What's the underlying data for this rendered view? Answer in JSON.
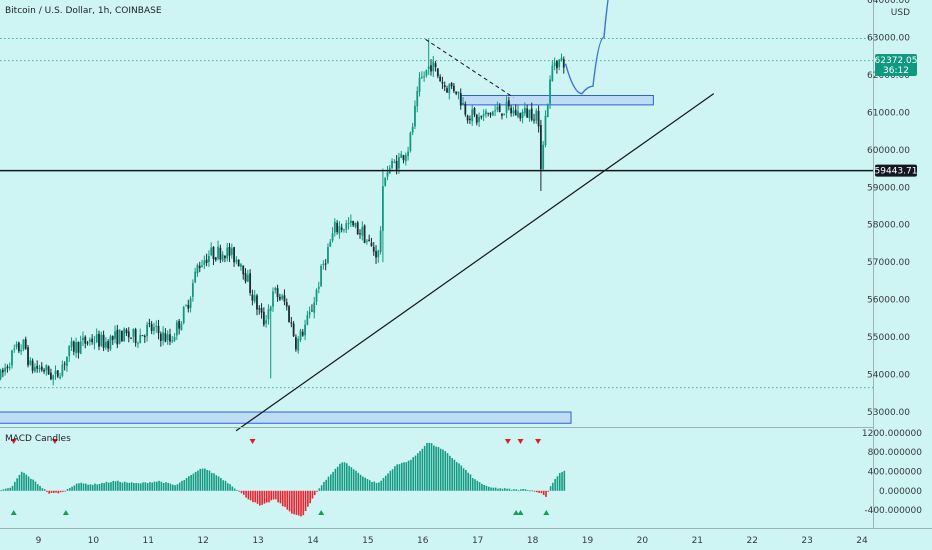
{
  "header": {
    "title": "Bitcoin / U.S. Dollar, 1h, COINBASE"
  },
  "indicator": {
    "title": "MACD Candles"
  },
  "price_axis": {
    "unit": "USD",
    "ticks": [
      "64000.00",
      "63000.00",
      "62000.00",
      "61000.00",
      "60000.00",
      "59000.00",
      "58000.00",
      "57000.00",
      "56000.00",
      "55000.00",
      "54000.00",
      "53000.00"
    ],
    "last_price": "62372.05",
    "countdown": "36:12",
    "level_label": "59443.71"
  },
  "macd_axis": {
    "ticks": [
      "1200.000000",
      "800.000000",
      "400.000000",
      "0.000000",
      "-400.000000"
    ]
  },
  "time_axis": {
    "ticks": [
      "9",
      "10",
      "11",
      "12",
      "13",
      "14",
      "15",
      "16",
      "17",
      "18",
      "19",
      "20",
      "21",
      "22",
      "23",
      "24"
    ]
  },
  "colors": {
    "background": "#cef5f3",
    "up": "#0e9a80",
    "down": "#1a2b33",
    "macd_pos": "#139a82",
    "macd_neg": "#ee1f2a",
    "zone": "#bfdcf5",
    "zone_border": "#2a5fe0",
    "projection": "#3a6fe6",
    "line": "#13161a",
    "price_tag": "#0e9a80",
    "arrow_up": "#15a15a",
    "arrow_down": "#e21d24"
  },
  "chart_data": {
    "type": "candlestick",
    "symbol": "Bitcoin / U.S. Dollar",
    "interval": "1h",
    "exchange": "COINBASE",
    "ylim": [
      52600,
      64000
    ],
    "xlim": [
      8.3,
      24.2
    ],
    "x_ticks": [
      9,
      10,
      11,
      12,
      13,
      14,
      15,
      16,
      17,
      18,
      19,
      20,
      21,
      22,
      23,
      24
    ],
    "y_ticks": [
      64000,
      63000,
      62000,
      61000,
      60000,
      59000,
      58000,
      57000,
      56000,
      55000,
      54000,
      53000
    ],
    "price_path": [
      [
        8.3,
        53900
      ],
      [
        8.55,
        54600
      ],
      [
        8.75,
        54800
      ],
      [
        8.85,
        54200
      ],
      [
        9.1,
        54150
      ],
      [
        9.3,
        53900
      ],
      [
        9.6,
        54700
      ],
      [
        10.0,
        54950
      ],
      [
        10.2,
        54850
      ],
      [
        10.5,
        55050
      ],
      [
        10.8,
        55000
      ],
      [
        11.0,
        55250
      ],
      [
        11.2,
        55100
      ],
      [
        11.4,
        54900
      ],
      [
        11.7,
        55800
      ],
      [
        11.9,
        56900
      ],
      [
        12.1,
        57200
      ],
      [
        12.4,
        57300
      ],
      [
        12.7,
        57000
      ],
      [
        12.9,
        56100
      ],
      [
        13.1,
        55400
      ],
      [
        13.3,
        56200
      ],
      [
        13.5,
        55900
      ],
      [
        13.7,
        54800
      ],
      [
        13.95,
        55600
      ],
      [
        14.2,
        57000
      ],
      [
        14.4,
        57900
      ],
      [
        14.65,
        58000
      ],
      [
        14.9,
        57800
      ],
      [
        15.05,
        57400
      ],
      [
        15.2,
        57200
      ],
      [
        15.3,
        59400
      ],
      [
        15.55,
        59700
      ],
      [
        15.75,
        60100
      ],
      [
        15.95,
        61800
      ],
      [
        16.15,
        62300
      ],
      [
        16.4,
        61700
      ],
      [
        16.6,
        61650
      ],
      [
        16.8,
        61000
      ],
      [
        17.0,
        60800
      ],
      [
        17.25,
        61000
      ],
      [
        17.5,
        61100
      ],
      [
        17.75,
        60950
      ],
      [
        17.95,
        61000
      ],
      [
        18.08,
        61000
      ],
      [
        18.15,
        59650
      ],
      [
        18.22,
        60700
      ],
      [
        18.3,
        61600
      ],
      [
        18.38,
        62400
      ],
      [
        18.5,
        62350
      ],
      [
        18.6,
        62370
      ]
    ],
    "wicks": [
      {
        "x": 16.12,
        "high": 62950,
        "low": 62000
      },
      {
        "x": 18.16,
        "high": 60800,
        "low": 58900
      },
      {
        "x": 13.22,
        "high": 55300,
        "low": 53900
      },
      {
        "x": 15.28,
        "high": 59500,
        "low": 57000
      }
    ],
    "last_price": 62372.05,
    "horizontal_level": 59443.71,
    "dotted_levels": [
      62970,
      62380,
      53650
    ],
    "trendline": {
      "from": [
        12.6,
        52500
      ],
      "to": [
        21.3,
        61500
      ]
    },
    "dashed_trendline": {
      "from": [
        16.05,
        62950
      ],
      "to": [
        17.65,
        61400
      ]
    },
    "zones": [
      {
        "x0": 16.7,
        "x1": 20.2,
        "y0": 61200,
        "y1": 61450
      },
      {
        "x0": 8.2,
        "x1": 18.7,
        "y0": 52700,
        "y1": 53000
      }
    ],
    "projection": [
      [
        18.6,
        62300
      ],
      [
        18.9,
        61500
      ],
      [
        19.1,
        61700
      ],
      [
        19.3,
        63000
      ],
      [
        19.55,
        65000
      ]
    ],
    "macd": {
      "ylim": [
        -750,
        1300
      ],
      "y_ticks": [
        1200,
        800,
        400,
        0,
        -400
      ],
      "path": [
        [
          8.3,
          0
        ],
        [
          8.5,
          60
        ],
        [
          8.7,
          400
        ],
        [
          8.95,
          180
        ],
        [
          9.2,
          -60
        ],
        [
          9.45,
          -30
        ],
        [
          9.7,
          160
        ],
        [
          10.0,
          130
        ],
        [
          10.4,
          200
        ],
        [
          10.8,
          150
        ],
        [
          11.2,
          200
        ],
        [
          11.5,
          110
        ],
        [
          11.7,
          260
        ],
        [
          12.0,
          480
        ],
        [
          12.25,
          320
        ],
        [
          12.5,
          130
        ],
        [
          12.8,
          -150
        ],
        [
          13.05,
          -320
        ],
        [
          13.3,
          -170
        ],
        [
          13.6,
          -450
        ],
        [
          13.8,
          -550
        ],
        [
          14.05,
          -60
        ],
        [
          14.2,
          190
        ],
        [
          14.55,
          620
        ],
        [
          14.85,
          350
        ],
        [
          15.05,
          200
        ],
        [
          15.2,
          160
        ],
        [
          15.5,
          520
        ],
        [
          15.8,
          650
        ],
        [
          16.1,
          1010
        ],
        [
          16.4,
          820
        ],
        [
          16.7,
          520
        ],
        [
          16.95,
          230
        ],
        [
          17.2,
          70
        ],
        [
          17.5,
          40
        ],
        [
          17.7,
          20
        ],
        [
          17.9,
          30
        ],
        [
          18.1,
          -20
        ],
        [
          18.25,
          -120
        ],
        [
          18.35,
          150
        ],
        [
          18.5,
          380
        ],
        [
          18.6,
          420
        ]
      ],
      "sell_signals": [
        8.55,
        9.3,
        12.9,
        17.55,
        17.78,
        18.1
      ],
      "buy_signals": [
        8.55,
        9.5,
        14.15,
        17.7,
        17.78,
        18.25
      ]
    }
  }
}
